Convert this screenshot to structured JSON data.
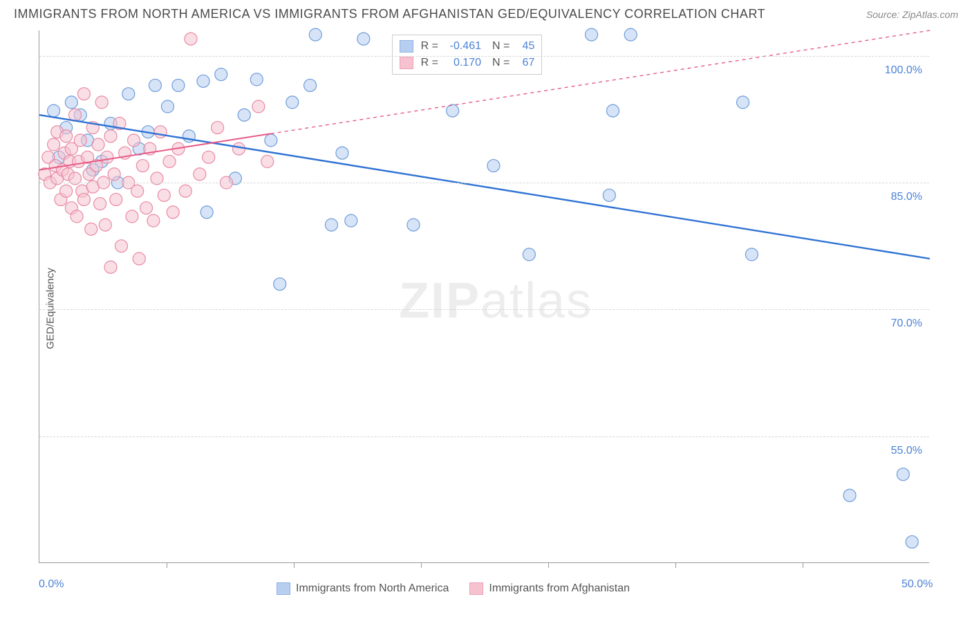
{
  "header": {
    "title": "IMMIGRANTS FROM NORTH AMERICA VS IMMIGRANTS FROM AFGHANISTAN GED/EQUIVALENCY CORRELATION CHART",
    "source_label": "Source: ",
    "source_name": "ZipAtlas.com"
  },
  "axes": {
    "y_title": "GED/Equivalency",
    "x_min": 0.0,
    "x_max": 50.0,
    "y_min": 40.0,
    "y_max": 103.0,
    "x_tick_labels": [
      "0.0%",
      "50.0%"
    ],
    "x_tick_positions": [
      0.0,
      50.0
    ],
    "y_tick_labels": [
      "55.0%",
      "70.0%",
      "85.0%",
      "100.0%"
    ],
    "y_tick_positions": [
      55.0,
      70.0,
      85.0,
      100.0
    ],
    "x_minor_ticks": [
      7.14,
      14.29,
      21.43,
      28.57,
      35.71,
      42.86
    ],
    "grid_color": "#d6d6d6",
    "axis_color": "#999999"
  },
  "legend_top": {
    "rows": [
      {
        "swatch_fill": "#b7cef0",
        "swatch_border": "#8fb1e3",
        "r_label": "R =",
        "r_value": "-0.461",
        "n_label": "N =",
        "n_value": "45"
      },
      {
        "swatch_fill": "#f6c2cf",
        "swatch_border": "#efa1b5",
        "r_label": "R =",
        "r_value": "0.170",
        "n_label": "N =",
        "n_value": "67"
      }
    ],
    "text_color_label": "#555555",
    "text_color_value": "#4b82d6"
  },
  "legend_bottom": {
    "items": [
      {
        "swatch_fill": "#b7cef0",
        "swatch_border": "#8fb1e3",
        "label": "Immigrants from North America"
      },
      {
        "swatch_fill": "#f6c2cf",
        "swatch_border": "#efa1b5",
        "label": "Immigrants from Afghanistan"
      }
    ]
  },
  "series": [
    {
      "id": "north_america",
      "color_fill": "#b7cef0",
      "color_stroke": "#6e9cd8",
      "marker_radius": 9,
      "fill_opacity": 0.55,
      "trend": {
        "x1": 0.0,
        "y1": 93.0,
        "x2": 50.0,
        "y2": 76.0,
        "color": "#2f72d4",
        "width": 2.4,
        "solid_until_x": 50.0
      },
      "points": [
        [
          0.8,
          93.5
        ],
        [
          1.1,
          88.0
        ],
        [
          1.5,
          91.5
        ],
        [
          1.8,
          94.5
        ],
        [
          2.3,
          93.0
        ],
        [
          2.7,
          90.0
        ],
        [
          3.0,
          86.5
        ],
        [
          3.5,
          87.5
        ],
        [
          4.0,
          92.0
        ],
        [
          4.4,
          85.0
        ],
        [
          5.0,
          95.5
        ],
        [
          5.6,
          89.0
        ],
        [
          6.1,
          91.0
        ],
        [
          6.5,
          96.5
        ],
        [
          7.2,
          94.0
        ],
        [
          7.8,
          96.5
        ],
        [
          8.4,
          90.5
        ],
        [
          9.2,
          97.0
        ],
        [
          9.4,
          81.5
        ],
        [
          10.2,
          97.8
        ],
        [
          11.0,
          85.5
        ],
        [
          11.5,
          93.0
        ],
        [
          12.2,
          97.2
        ],
        [
          13.0,
          90.0
        ],
        [
          13.5,
          73.0
        ],
        [
          14.2,
          94.5
        ],
        [
          15.2,
          96.5
        ],
        [
          15.5,
          102.5
        ],
        [
          16.4,
          80.0
        ],
        [
          17.0,
          88.5
        ],
        [
          17.5,
          80.5
        ],
        [
          18.2,
          102.0
        ],
        [
          21.0,
          80.0
        ],
        [
          23.2,
          93.5
        ],
        [
          25.5,
          87.0
        ],
        [
          27.5,
          76.5
        ],
        [
          31.0,
          102.5
        ],
        [
          32.0,
          83.5
        ],
        [
          32.2,
          93.5
        ],
        [
          33.2,
          102.5
        ],
        [
          39.5,
          94.5
        ],
        [
          40.0,
          76.5
        ],
        [
          45.5,
          48.0
        ],
        [
          48.5,
          50.5
        ],
        [
          49.0,
          42.5
        ]
      ]
    },
    {
      "id": "afghanistan",
      "color_fill": "#f6c2cf",
      "color_stroke": "#e88aa3",
      "marker_radius": 9,
      "fill_opacity": 0.55,
      "trend": {
        "x1": 0.0,
        "y1": 86.5,
        "x2": 50.0,
        "y2": 103.0,
        "color": "#e75a87",
        "width": 2.0,
        "solid_until_x": 13.0
      },
      "points": [
        [
          0.3,
          86.0
        ],
        [
          0.5,
          88.0
        ],
        [
          0.6,
          85.0
        ],
        [
          0.8,
          89.5
        ],
        [
          0.9,
          87.0
        ],
        [
          1.0,
          91.0
        ],
        [
          1.0,
          85.5
        ],
        [
          1.2,
          83.0
        ],
        [
          1.3,
          86.5
        ],
        [
          1.4,
          88.5
        ],
        [
          1.5,
          84.0
        ],
        [
          1.5,
          90.5
        ],
        [
          1.6,
          86.0
        ],
        [
          1.7,
          87.5
        ],
        [
          1.8,
          82.0
        ],
        [
          1.8,
          89.0
        ],
        [
          2.0,
          93.0
        ],
        [
          2.0,
          85.5
        ],
        [
          2.1,
          81.0
        ],
        [
          2.2,
          87.5
        ],
        [
          2.3,
          90.0
        ],
        [
          2.4,
          84.0
        ],
        [
          2.5,
          95.5
        ],
        [
          2.5,
          83.0
        ],
        [
          2.7,
          88.0
        ],
        [
          2.8,
          86.0
        ],
        [
          2.9,
          79.5
        ],
        [
          3.0,
          91.5
        ],
        [
          3.0,
          84.5
        ],
        [
          3.2,
          87.0
        ],
        [
          3.3,
          89.5
        ],
        [
          3.4,
          82.5
        ],
        [
          3.5,
          94.5
        ],
        [
          3.6,
          85.0
        ],
        [
          3.7,
          80.0
        ],
        [
          3.8,
          88.0
        ],
        [
          4.0,
          75.0
        ],
        [
          4.0,
          90.5
        ],
        [
          4.2,
          86.0
        ],
        [
          4.3,
          83.0
        ],
        [
          4.5,
          92.0
        ],
        [
          4.6,
          77.5
        ],
        [
          4.8,
          88.5
        ],
        [
          5.0,
          85.0
        ],
        [
          5.2,
          81.0
        ],
        [
          5.3,
          90.0
        ],
        [
          5.5,
          84.0
        ],
        [
          5.6,
          76.0
        ],
        [
          5.8,
          87.0
        ],
        [
          6.0,
          82.0
        ],
        [
          6.2,
          89.0
        ],
        [
          6.4,
          80.5
        ],
        [
          6.6,
          85.5
        ],
        [
          6.8,
          91.0
        ],
        [
          7.0,
          83.5
        ],
        [
          7.3,
          87.5
        ],
        [
          7.5,
          81.5
        ],
        [
          7.8,
          89.0
        ],
        [
          8.2,
          84.0
        ],
        [
          8.5,
          102.0
        ],
        [
          9.0,
          86.0
        ],
        [
          9.5,
          88.0
        ],
        [
          10.0,
          91.5
        ],
        [
          10.5,
          85.0
        ],
        [
          11.2,
          89.0
        ],
        [
          12.3,
          94.0
        ],
        [
          12.8,
          87.5
        ]
      ]
    }
  ],
  "watermark": {
    "part1": "ZIP",
    "part2": "atlas"
  },
  "chart_background": "#ffffff"
}
